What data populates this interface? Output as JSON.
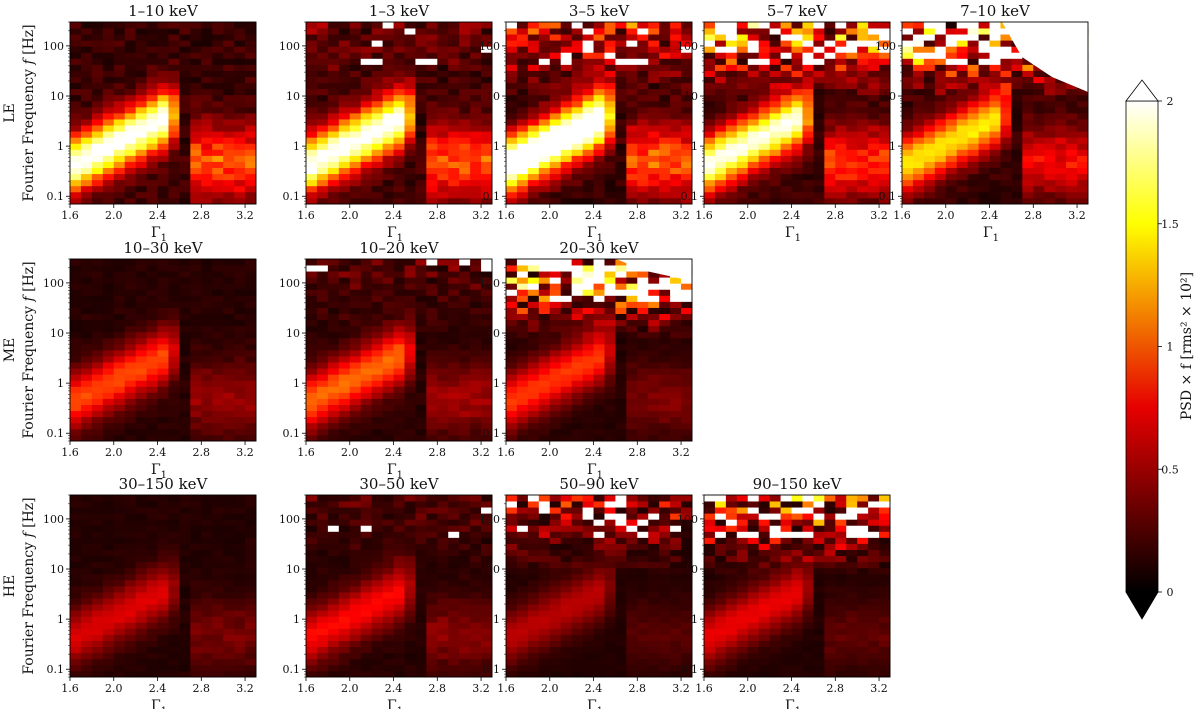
{
  "chart_data": {
    "type": "heatmap",
    "x_ticks": [
      "1.6",
      "2.0",
      "2.4",
      "2.8",
      "3.2"
    ],
    "y_ticks": [
      "0.1",
      "1",
      "10",
      "100"
    ],
    "xlabel": "Γ",
    "xlabel_sub": "1",
    "ylabel_prefix": "Fourier Frequency",
    "ylabel_var": "f",
    "ylabel_unit": "[Hz]",
    "instruments": [
      "LE",
      "ME",
      "HE"
    ],
    "x_range": [
      1.6,
      3.3
    ],
    "y_range": [
      0.07,
      300
    ],
    "colorbar": {
      "label": "PSD × f [rms² × 10²]",
      "range": [
        0,
        2
      ],
      "ticks": [
        "0",
        "0.5",
        "1",
        "1.5",
        "2"
      ],
      "extend": "both",
      "colormap": "hot"
    },
    "panels": [
      {
        "row": 0,
        "col": 0,
        "title": "1–10 keV",
        "instrument": "LE",
        "qpo_peak": 1.9,
        "qpo_intensity": 1.9
      },
      {
        "row": 0,
        "col": 1,
        "title": "1–3 keV",
        "instrument": "LE",
        "qpo_peak": 1.9,
        "qpo_intensity": 1.9
      },
      {
        "row": 0,
        "col": 2,
        "title": "3–5 keV",
        "instrument": "LE",
        "qpo_peak": 1.9,
        "qpo_intensity": 2.2
      },
      {
        "row": 0,
        "col": 3,
        "title": "5–7 keV",
        "instrument": "LE",
        "qpo_peak": 1.6,
        "qpo_intensity": 1.8
      },
      {
        "row": 0,
        "col": 4,
        "title": "7–10 keV",
        "instrument": "LE",
        "qpo_peak": 1.3,
        "qpo_intensity": 1.3
      },
      {
        "row": 1,
        "col": 0,
        "title": "10–30 keV",
        "instrument": "ME",
        "qpo_peak": 0.75,
        "qpo_intensity": 0.85
      },
      {
        "row": 1,
        "col": 1,
        "title": "10–20 keV",
        "instrument": "ME",
        "qpo_peak": 0.8,
        "qpo_intensity": 0.95
      },
      {
        "row": 1,
        "col": 2,
        "title": "20–30 keV",
        "instrument": "ME",
        "qpo_peak": 0.6,
        "qpo_intensity": 0.8
      },
      {
        "row": 2,
        "col": 0,
        "title": "30–150 keV",
        "instrument": "HE",
        "qpo_peak": 0.55,
        "qpo_intensity": 0.55
      },
      {
        "row": 2,
        "col": 1,
        "title": "30–50 keV",
        "instrument": "HE",
        "qpo_peak": 0.65,
        "qpo_intensity": 0.65
      },
      {
        "row": 2,
        "col": 2,
        "title": "50–90 keV",
        "instrument": "HE",
        "qpo_peak": 0.35,
        "qpo_intensity": 0.45
      },
      {
        "row": 2,
        "col": 3,
        "title": "90–150 keV",
        "instrument": "HE",
        "qpo_peak": 0.4,
        "qpo_intensity": 0.6
      }
    ]
  }
}
